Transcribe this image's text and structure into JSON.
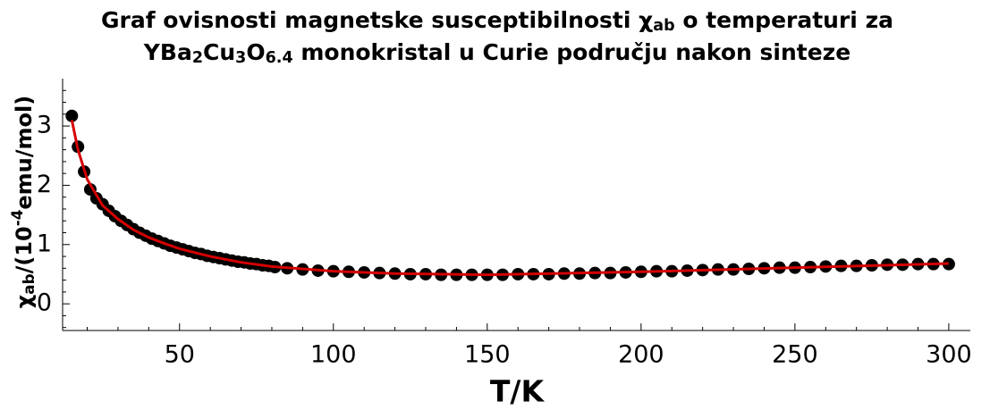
{
  "chart_data": {
    "type": "scatter",
    "title_lines": [
      [
        {
          "text": "Graf ovisnosti magnetske susceptibilnosti χ"
        },
        {
          "text": "ab",
          "sub": true
        },
        {
          "text": " o temperaturi za"
        }
      ],
      [
        {
          "text": "YBa"
        },
        {
          "text": "2",
          "sub": true
        },
        {
          "text": "Cu"
        },
        {
          "text": "3",
          "sub": true
        },
        {
          "text": "O"
        },
        {
          "text": "6.4",
          "sub": true
        },
        {
          "text": " monokristal u Curie području nakon sinteze"
        }
      ]
    ],
    "x_label": "T/K",
    "y_label": [
      {
        "text": "χ"
      },
      {
        "text": "ab",
        "sub": true
      },
      {
        "text": "/(10"
      },
      {
        "text": "-4",
        "sup": true
      },
      {
        "text": "emu/mol)"
      }
    ],
    "xlim": [
      12,
      307
    ],
    "ylim": [
      -0.45,
      3.8
    ],
    "xticks": [
      50,
      100,
      150,
      200,
      250,
      300
    ],
    "yticks": [
      0,
      1,
      2,
      3
    ],
    "xminorticks": [
      20,
      30,
      40,
      60,
      70,
      80,
      90,
      110,
      120,
      130,
      140,
      160,
      170,
      180,
      190,
      210,
      220,
      230,
      240,
      260,
      270,
      280,
      290
    ],
    "yminorticks": [
      -0.4,
      -0.2,
      0.2,
      0.4,
      0.6,
      0.8,
      1.2,
      1.4,
      1.6,
      1.8,
      2.2,
      2.4,
      2.6,
      2.8,
      3.2,
      3.4,
      3.6
    ],
    "series": [
      {
        "color": "#000000",
        "marker": "circle",
        "x": [
          15,
          17,
          19,
          21,
          23,
          25,
          27,
          29,
          31,
          33,
          35,
          37,
          39,
          41,
          43,
          45,
          47,
          49,
          51,
          53,
          55,
          57,
          59,
          61,
          63,
          65,
          67,
          69,
          71,
          73,
          75,
          77,
          79,
          81,
          85,
          90,
          95,
          100,
          105,
          110,
          115,
          120,
          125,
          130,
          135,
          140,
          145,
          150,
          155,
          160,
          165,
          170,
          175,
          180,
          185,
          190,
          195,
          200,
          205,
          210,
          215,
          220,
          225,
          230,
          235,
          240,
          245,
          250,
          255,
          260,
          265,
          270,
          275,
          280,
          285,
          290,
          295,
          300
        ],
        "values": [
          3.17,
          2.65,
          2.23,
          1.93,
          1.78,
          1.68,
          1.57,
          1.48,
          1.4,
          1.33,
          1.26,
          1.2,
          1.15,
          1.1,
          1.06,
          1.02,
          0.98,
          0.95,
          0.92,
          0.89,
          0.86,
          0.84,
          0.81,
          0.79,
          0.77,
          0.75,
          0.73,
          0.71,
          0.7,
          0.68,
          0.67,
          0.65,
          0.64,
          0.62,
          0.6,
          0.58,
          0.56,
          0.55,
          0.54,
          0.53,
          0.52,
          0.51,
          0.5,
          0.5,
          0.49,
          0.49,
          0.49,
          0.49,
          0.49,
          0.5,
          0.5,
          0.5,
          0.51,
          0.51,
          0.52,
          0.52,
          0.53,
          0.54,
          0.55,
          0.55,
          0.56,
          0.57,
          0.58,
          0.58,
          0.59,
          0.6,
          0.61,
          0.61,
          0.62,
          0.63,
          0.64,
          0.64,
          0.65,
          0.66,
          0.66,
          0.67,
          0.67,
          0.67
        ]
      },
      {
        "color": "#d40000",
        "marker": "line",
        "x": [
          15,
          17,
          20,
          25,
          30,
          35,
          40,
          45,
          50,
          60,
          70,
          80,
          100,
          120,
          150,
          200,
          250,
          300
        ],
        "values": [
          3.1,
          2.6,
          2.1,
          1.66,
          1.43,
          1.25,
          1.12,
          1.02,
          0.93,
          0.8,
          0.7,
          0.63,
          0.55,
          0.51,
          0.49,
          0.54,
          0.61,
          0.68
        ]
      }
    ]
  }
}
